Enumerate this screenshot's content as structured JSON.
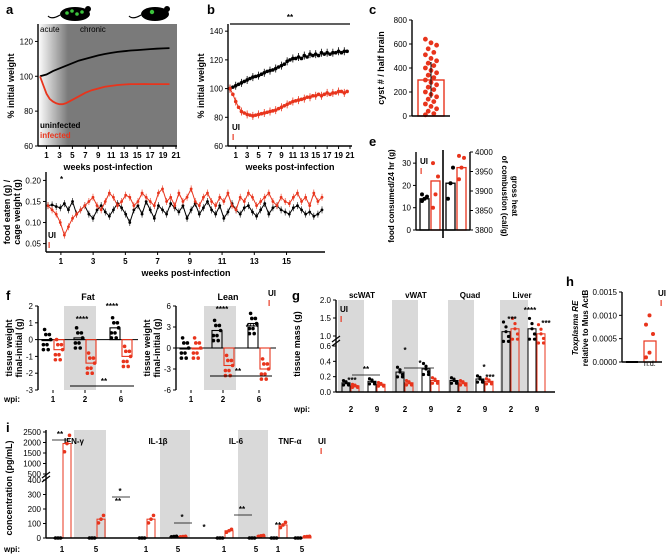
{
  "colors": {
    "infected": "#e8341c",
    "uninfected": "#000000",
    "shade": "#d9d9d9",
    "dark_shade": "#7a7a7a"
  },
  "panels": {
    "a": {
      "letter": "a",
      "ylabel": "% initial weight",
      "xlabel": "weeks post-infection",
      "yticks": [
        "120",
        "100",
        "80",
        "60"
      ],
      "xticks": [
        "1",
        "3",
        "5",
        "7",
        "9",
        "11",
        "13",
        "15",
        "17",
        "19",
        "21"
      ],
      "acute": "acute",
      "chronic": "chronic",
      "uninfected": "uninfected",
      "infected": "infected"
    },
    "b": {
      "letter": "b",
      "ylabel": "% initial weight",
      "xlabel": "weeks post-infection",
      "yticks": [
        "140",
        "120",
        "100",
        "80",
        "60"
      ],
      "xticks": [
        "1",
        "3",
        "5",
        "7",
        "9",
        "11",
        "13",
        "15",
        "17",
        "19",
        "21"
      ],
      "sig": "**",
      "ui": "UI",
      "i": "I"
    },
    "c": {
      "letter": "c",
      "ylabel": "cyst # / half brain",
      "yticks": [
        "800",
        "600",
        "400",
        "200",
        "0"
      ]
    },
    "d": {
      "ylabel1": "food eaten (g) /",
      "ylabel2": "cage weight (g)",
      "xlabel": "weeks post-infection",
      "yticks": [
        "0.20",
        "0.15",
        "0.10",
        "0.05"
      ],
      "xticks": [
        "1",
        "3",
        "5",
        "7",
        "9",
        "11",
        "13",
        "15"
      ],
      "sig": "*",
      "ui": "UI",
      "i": "I"
    },
    "e": {
      "letter": "e",
      "ylabel": "food consumed/24 hr (g)",
      "ylabel_r1": "gross heat",
      "ylabel_r2": "of combustion (cal/g)",
      "yticks": [
        "30",
        "20",
        "10",
        "0"
      ],
      "yticks_r": [
        "4000",
        "3950",
        "3900",
        "3850",
        "3800"
      ],
      "ui": "UI",
      "i": "I"
    },
    "f": {
      "letter": "f",
      "ylabel1": "tissue weight",
      "ylabel2": "final-initial (g)",
      "fat": "Fat",
      "lean": "Lean",
      "fat_yticks": [
        "2",
        "1",
        "0",
        "-1",
        "-2",
        "-3"
      ],
      "lean_yticks": [
        "6",
        "3",
        "0",
        "-3",
        "-6"
      ],
      "xticks": [
        "1",
        "2",
        "6"
      ],
      "wpi": "wpi:",
      "s4": "****",
      "s2": "**",
      "ui": "UI",
      "i": "I"
    },
    "g": {
      "letter": "g",
      "ylabel": "tissue mass (g)",
      "groups": [
        "scWAT",
        "vWAT",
        "Quad",
        "Liver"
      ],
      "yticks_top": [
        "2.0",
        "1.5",
        "1.0"
      ],
      "yticks_bot": [
        "0.6",
        "0.4",
        "0.2",
        "0.0"
      ],
      "xticks": [
        "2",
        "9"
      ],
      "wpi": "wpi:",
      "s3": "***",
      "s2": "**",
      "s1": "*",
      "s4": "****",
      "ui": "UI",
      "i": "I"
    },
    "h": {
      "letter": "h",
      "ylabel1": "Toxplasma RE",
      "ylabel2": "relative to Mus ActB",
      "yticks": [
        "0.0015",
        "0.0010",
        "0.0005",
        "0.0000"
      ],
      "nd": "n.d.",
      "ui": "UI",
      "i": "I"
    },
    "i": {
      "letter": "i",
      "ylabel": "concentration (pg/mL)",
      "cytokines": [
        "IFN-γ",
        "IL-1β",
        "IL-6",
        "TNF-α"
      ],
      "yticks": [
        "2500",
        "2000",
        "1500",
        "1000",
        "500",
        "400",
        "300",
        "200",
        "100",
        "0"
      ],
      "xticks": [
        "1",
        "5"
      ],
      "wpi": "wpi:",
      "s2": "**",
      "s1": "*",
      "ui": "UI",
      "i": "I"
    }
  },
  "chart_data": [
    {
      "type": "line",
      "panel": "a",
      "title": "",
      "xlabel": "weeks post-infection",
      "ylabel": "% initial weight",
      "ylim": [
        60,
        130
      ],
      "xlim": [
        0,
        21
      ],
      "series": [
        {
          "name": "uninfected",
          "x": [
            0,
            1,
            2,
            3,
            4,
            5,
            6,
            7,
            8,
            9,
            10,
            11,
            12,
            13,
            14,
            15,
            16,
            17,
            18,
            19,
            20
          ],
          "values": [
            100,
            101,
            103,
            104.5,
            106,
            107.5,
            109,
            110,
            111,
            112,
            112.8,
            113.4,
            114,
            114.4,
            114.8,
            115,
            115.3,
            115.6,
            115.8,
            116,
            116.2
          ]
        },
        {
          "name": "infected",
          "x": [
            0,
            0.5,
            1,
            1.5,
            2,
            2.5,
            3,
            3.5,
            4,
            5,
            6,
            7,
            8,
            9,
            10,
            11,
            12,
            13,
            14,
            15,
            16,
            17,
            18,
            19,
            20
          ],
          "values": [
            100,
            95,
            90,
            87,
            85.5,
            84.5,
            84,
            84,
            84.5,
            86.5,
            88.5,
            90.5,
            92,
            93,
            94,
            94.5,
            95,
            95.3,
            95.5,
            95.5,
            95.6,
            95.5,
            95.5,
            95.5,
            95.5
          ]
        }
      ]
    },
    {
      "type": "line",
      "panel": "b",
      "title": "",
      "xlabel": "weeks post-infection",
      "ylabel": "% initial weight",
      "ylim": [
        60,
        145
      ],
      "xlim": [
        0,
        21
      ],
      "annotation": "**",
      "series": [
        {
          "name": "UI",
          "x": [
            0,
            0.5,
            1,
            1.5,
            2,
            2.5,
            3,
            3.5,
            4,
            4.5,
            5,
            5.5,
            6,
            6.5,
            7,
            7.5,
            8,
            8.5,
            9,
            9.5,
            10,
            10.5,
            11,
            11.5,
            12,
            12.5,
            13,
            13.5,
            14,
            14.5,
            15,
            15.5,
            16,
            16.5,
            17,
            17.5,
            18,
            18.5,
            19,
            19.5,
            20,
            20.5
          ],
          "values": [
            100,
            101,
            102,
            103,
            104,
            105,
            106,
            107,
            108,
            108.5,
            109,
            110,
            111,
            112,
            112.5,
            113,
            114,
            115,
            116,
            117,
            119,
            120,
            121,
            121,
            122,
            121,
            123,
            122,
            124,
            123,
            124,
            123,
            125,
            124,
            125,
            124,
            125,
            125,
            126,
            125,
            126,
            126
          ]
        },
        {
          "name": "I",
          "x": [
            0,
            0.5,
            1,
            1.5,
            2,
            2.5,
            3,
            3.5,
            4,
            4.5,
            5,
            5.5,
            6,
            6.5,
            7,
            7.5,
            8,
            8.5,
            9,
            9.5,
            10,
            10.5,
            11,
            11.5,
            12,
            12.5,
            13,
            13.5,
            14,
            14.5,
            15,
            15.5,
            16,
            16.5,
            17,
            17.5,
            18,
            18.5,
            19,
            19.5,
            20,
            20.5
          ],
          "values": [
            100,
            96,
            91,
            87,
            84,
            83,
            82,
            81.5,
            81,
            81.5,
            82,
            82.5,
            83,
            83.5,
            84,
            84.5,
            85,
            86,
            87,
            88,
            89,
            90,
            91,
            91.5,
            92,
            92.5,
            93,
            94,
            94,
            95,
            95,
            96,
            95,
            96,
            97,
            96,
            97,
            97,
            98,
            98,
            97,
            98
          ]
        }
      ]
    },
    {
      "type": "scatter",
      "panel": "c",
      "ylabel": "cyst # / half brain",
      "ylim": [
        0,
        800
      ],
      "series": [
        {
          "name": "I",
          "mean": 300,
          "values": [
            640,
            610,
            590,
            560,
            530,
            510,
            480,
            460,
            440,
            420,
            400,
            380,
            360,
            340,
            320,
            300,
            280,
            260,
            240,
            220,
            200,
            180,
            160,
            140,
            120,
            100,
            80,
            60,
            40,
            20,
            10
          ]
        }
      ]
    },
    {
      "type": "line",
      "panel": "d",
      "xlabel": "weeks post-infection",
      "ylabel": "food eaten (g) / cage weight (g)",
      "ylim": [
        0.03,
        0.22
      ],
      "xlim": [
        0.2,
        17.2
      ],
      "annotation": "*",
      "series": [
        {
          "name": "UI",
          "values": [
            0.14,
            0.142,
            0.138,
            0.135,
            0.145,
            0.13,
            0.15,
            0.12,
            0.13,
            0.14,
            0.12,
            0.11,
            0.13,
            0.14,
            0.125,
            0.115,
            0.13,
            0.145,
            0.135,
            0.12,
            0.1,
            0.13,
            0.14,
            0.12,
            0.15,
            0.13,
            0.11,
            0.14,
            0.13,
            0.12,
            0.145,
            0.135,
            0.125,
            0.14,
            0.11,
            0.13,
            0.145,
            0.12,
            0.135,
            0.15,
            0.13,
            0.12,
            0.14,
            0.11,
            0.125,
            0.145,
            0.13,
            0.12,
            0.135,
            0.14,
            0.125,
            0.115,
            0.13,
            0.145,
            0.12,
            0.135,
            0.14,
            0.13,
            0.125,
            0.12,
            0.135,
            0.14,
            0.13,
            0.12,
            0.125,
            0.115,
            0.12,
            0.13
          ]
        },
        {
          "name": "I",
          "values": [
            0.14,
            0.13,
            0.12,
            0.1,
            0.07,
            0.09,
            0.11,
            0.12,
            0.13,
            0.14,
            0.15,
            0.16,
            0.14,
            0.13,
            0.15,
            0.17,
            0.16,
            0.14,
            0.15,
            0.165,
            0.16,
            0.14,
            0.15,
            0.17,
            0.16,
            0.15,
            0.14,
            0.17,
            0.18,
            0.15,
            0.16,
            0.14,
            0.17,
            0.15,
            0.16,
            0.18,
            0.15,
            0.14,
            0.16,
            0.17,
            0.15,
            0.14,
            0.16,
            0.15,
            0.17,
            0.14,
            0.13,
            0.16,
            0.15,
            0.17,
            0.16,
            0.14,
            0.15,
            0.16,
            0.17,
            0.15,
            0.14,
            0.16,
            0.15,
            0.145,
            0.16,
            0.17,
            0.15,
            0.16,
            0.14,
            0.17,
            0.15,
            0.16
          ]
        }
      ]
    },
    {
      "type": "bar",
      "panel": "e",
      "ylabel": "food consumed/24 hr (g)",
      "ylabel_right": "gross heat of combustion (cal/g)",
      "ylim": [
        0,
        35
      ],
      "ylim_right": [
        3800,
        4000
      ],
      "series": [
        {
          "name": "UI food",
          "value": 14,
          "points": [
            13,
            14,
            15,
            16
          ]
        },
        {
          "name": "I food",
          "value": 22,
          "points": [
            10,
            16,
            24,
            30
          ]
        },
        {
          "name": "UI heat",
          "value": 3920,
          "points": [
            3880,
            3920,
            3960
          ]
        },
        {
          "name": "I heat",
          "value": 3960,
          "points": [
            3930,
            3960,
            3985,
            3990
          ]
        }
      ]
    },
    {
      "type": "scatter",
      "panel": "f",
      "subtitle": "Fat",
      "xlabel": "wpi",
      "ylabel": "tissue weight final-initial (g)",
      "ylim": [
        -3,
        2
      ],
      "categories": [
        "1",
        "2",
        "6"
      ],
      "series": [
        {
          "name": "UI",
          "means": [
            0,
            0.1,
            0.7
          ]
        },
        {
          "name": "I",
          "means": [
            -0.6,
            -1.4,
            -1.0
          ]
        }
      ],
      "annotations": [
        "****",
        "****",
        "**"
      ]
    },
    {
      "type": "scatter",
      "panel": "f",
      "subtitle": "Lean",
      "xlabel": "wpi",
      "ylabel": "tissue weight final-initial (g)",
      "ylim": [
        -6,
        6
      ],
      "categories": [
        "1",
        "2",
        "6"
      ],
      "series": [
        {
          "name": "UI",
          "means": [
            0,
            2.5,
            3.5
          ]
        },
        {
          "name": "I",
          "means": [
            0,
            -2.5,
            -3.0
          ]
        }
      ],
      "annotations": [
        "****",
        "****",
        "**"
      ]
    },
    {
      "type": "bar",
      "panel": "g",
      "ylabel": "tissue mass (g)",
      "xlabel": "wpi",
      "groups": [
        "scWAT",
        "vWAT",
        "Quad",
        "Liver"
      ],
      "categories": [
        "2",
        "9"
      ],
      "series": [
        {
          "name": "UI",
          "values": {
            "scWAT": [
              0.12,
              0.14
            ],
            "vWAT": [
              0.26,
              0.3
            ],
            "Quad": [
              0.15,
              0.17
            ],
            "Liver": [
              1.12,
              1.2
            ]
          }
        },
        {
          "name": "I",
          "values": {
            "scWAT": [
              0.08,
              0.1
            ],
            "vWAT": [
              0.12,
              0.15
            ],
            "Quad": [
              0.12,
              0.14
            ],
            "Liver": [
              1.2,
              1.06
            ]
          }
        }
      ],
      "annotations": [
        "***",
        "**",
        "*",
        "*",
        "*",
        "***",
        "***",
        "****",
        "***"
      ]
    },
    {
      "type": "bar",
      "panel": "h",
      "ylabel": "Toxplasma RE relative to Mus ActB",
      "ylim": [
        0,
        0.0015
      ],
      "series": [
        {
          "name": "UI",
          "value": 0,
          "note": "n.d."
        },
        {
          "name": "I",
          "value": 0.00045,
          "points": [
            0.0001,
            0.0002,
            0.0006,
            0.0008,
            0.001
          ]
        }
      ]
    },
    {
      "type": "bar",
      "panel": "i",
      "ylabel": "concentration (pg/mL)",
      "xlabel": "wpi",
      "groups": [
        "IFN-γ",
        "IL-1β",
        "IL-6",
        "TNF-α"
      ],
      "categories": [
        "1",
        "5"
      ],
      "series": [
        {
          "name": "UI",
          "values": {
            "IFN-γ": [
              0,
              0
            ],
            "IL-1β": [
              0,
              10
            ],
            "IL-6": [
              0,
              0
            ],
            "TNF-α": [
              0,
              0
            ]
          }
        },
        {
          "name": "I",
          "values": {
            "IFN-γ": [
              1950,
              130
            ],
            "IL-1β": [
              130,
              10
            ],
            "IL-6": [
              50,
              15
            ],
            "TNF-α": [
              90,
              10
            ]
          }
        }
      ],
      "annotations": [
        "**",
        "*",
        "**",
        "*",
        "*",
        "**",
        "**"
      ]
    }
  ]
}
